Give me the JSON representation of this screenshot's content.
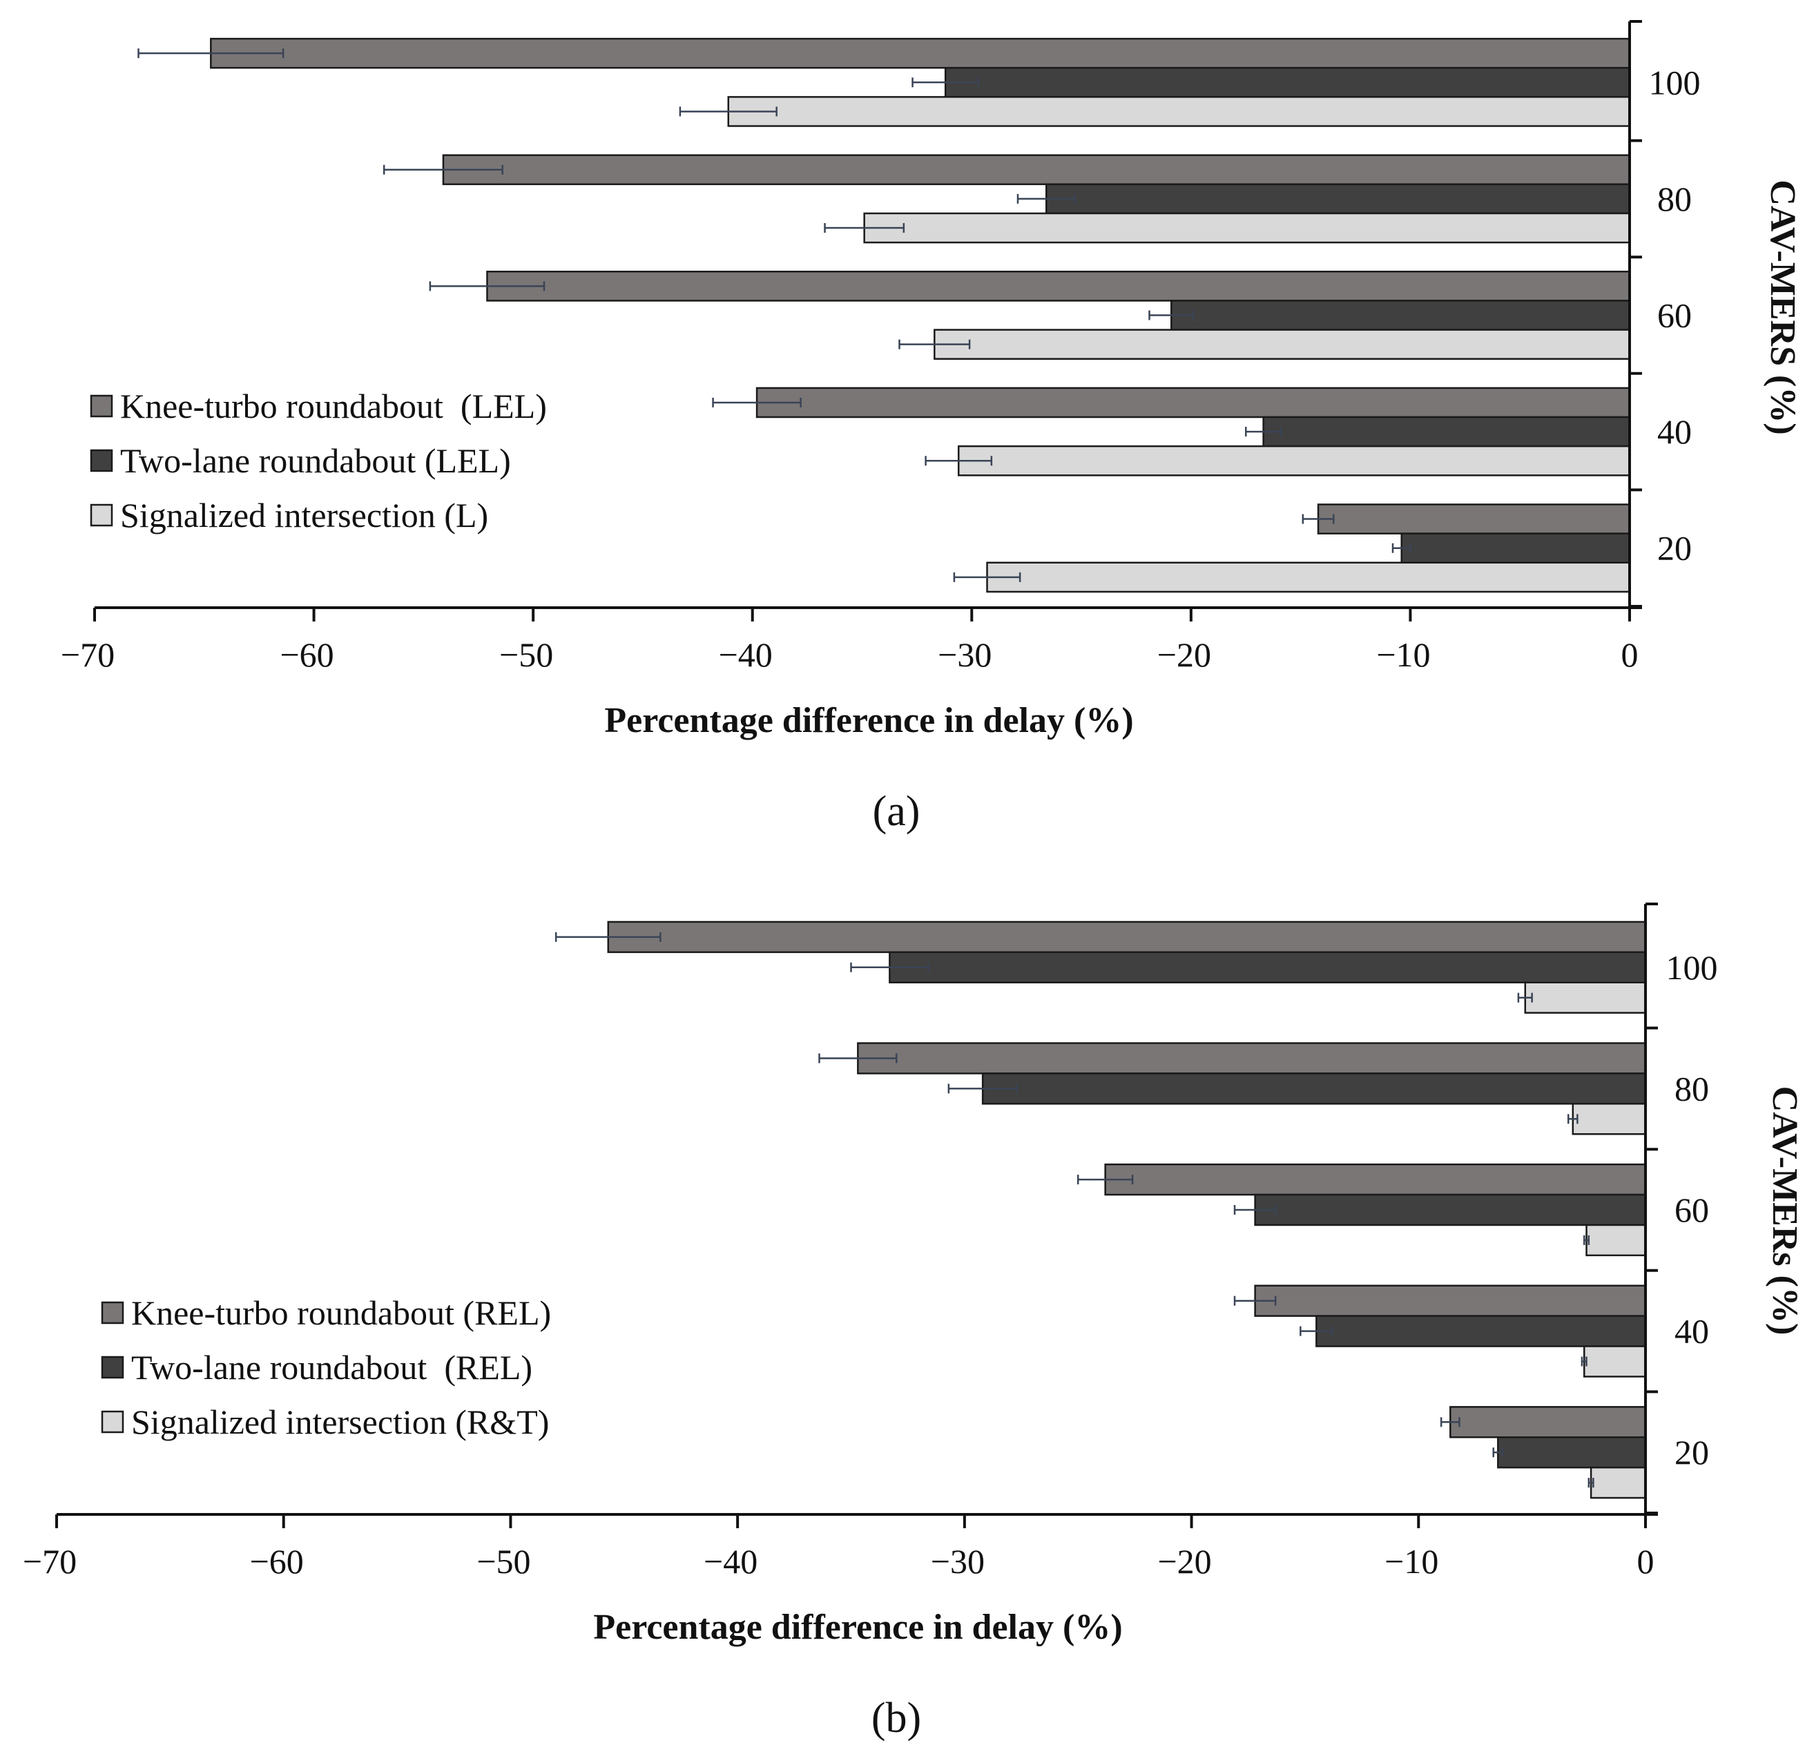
{
  "colors": {
    "knee_turbo": "#7a7676",
    "two_lane": "#404040",
    "signalized": "#d9d9d9",
    "bar_edge": "#1a1a1a",
    "error_bar": "#3a4456",
    "axis": "#111111"
  },
  "chart_data": [
    {
      "panel_label": "(a)",
      "type": "bar",
      "orientation": "horizontal",
      "categories": [
        "100",
        "80",
        "60",
        "40",
        "20"
      ],
      "series": [
        {
          "name": "Knee-turbo roundabout  (LEL)",
          "values": [
            -64.7,
            -54.1,
            -52.1,
            -39.8,
            -14.2
          ],
          "errors": [
            3.3,
            2.7,
            2.6,
            2.0,
            0.7
          ]
        },
        {
          "name": "Two-lane roundabout (LEL)",
          "values": [
            -31.2,
            -26.6,
            -20.9,
            -16.7,
            -10.4
          ],
          "errors": [
            1.5,
            1.3,
            1.0,
            0.8,
            0.4
          ]
        },
        {
          "name": "Signalized intersection (L)",
          "values": [
            -41.1,
            -34.9,
            -31.7,
            -30.6,
            -29.3
          ],
          "errors": [
            2.2,
            1.8,
            1.6,
            1.5,
            1.5
          ]
        }
      ],
      "xlim": [
        -70,
        0
      ],
      "xticks": [
        "−70",
        "−60",
        "−50",
        "−40",
        "−30",
        "−20",
        "−10",
        "0"
      ],
      "xlabel": "Percentage difference in delay (%)",
      "ylabel": "CAV-MERS (%)",
      "legend_position": "middle-left",
      "grid": false
    },
    {
      "panel_label": "(b)",
      "type": "bar",
      "orientation": "horizontal",
      "categories": [
        "100",
        "80",
        "60",
        "40",
        "20"
      ],
      "series": [
        {
          "name": "Knee-turbo roundabout (REL)",
          "values": [
            -45.7,
            -34.7,
            -23.8,
            -17.2,
            -8.6
          ],
          "errors": [
            2.3,
            1.7,
            1.2,
            0.9,
            0.4
          ]
        },
        {
          "name": "Two-lane roundabout  (REL)",
          "values": [
            -33.3,
            -29.2,
            -17.2,
            -14.5,
            -6.5
          ],
          "errors": [
            1.7,
            1.5,
            0.9,
            0.7,
            0.2
          ]
        },
        {
          "name": "Signalized intersection (R&T)",
          "values": [
            -5.3,
            -3.2,
            -2.6,
            -2.7,
            -2.4
          ],
          "errors": [
            0.3,
            0.2,
            0.1,
            0.1,
            0.1
          ]
        }
      ],
      "xlim": [
        -70,
        0
      ],
      "xticks": [
        "−70",
        "−60",
        "−50",
        "−40",
        "−30",
        "−20",
        "−10",
        "0"
      ],
      "xlabel": "Percentage difference in delay (%)",
      "ylabel": "CAV-MERs (%)",
      "legend_position": "bottom-left",
      "grid": false
    }
  ]
}
